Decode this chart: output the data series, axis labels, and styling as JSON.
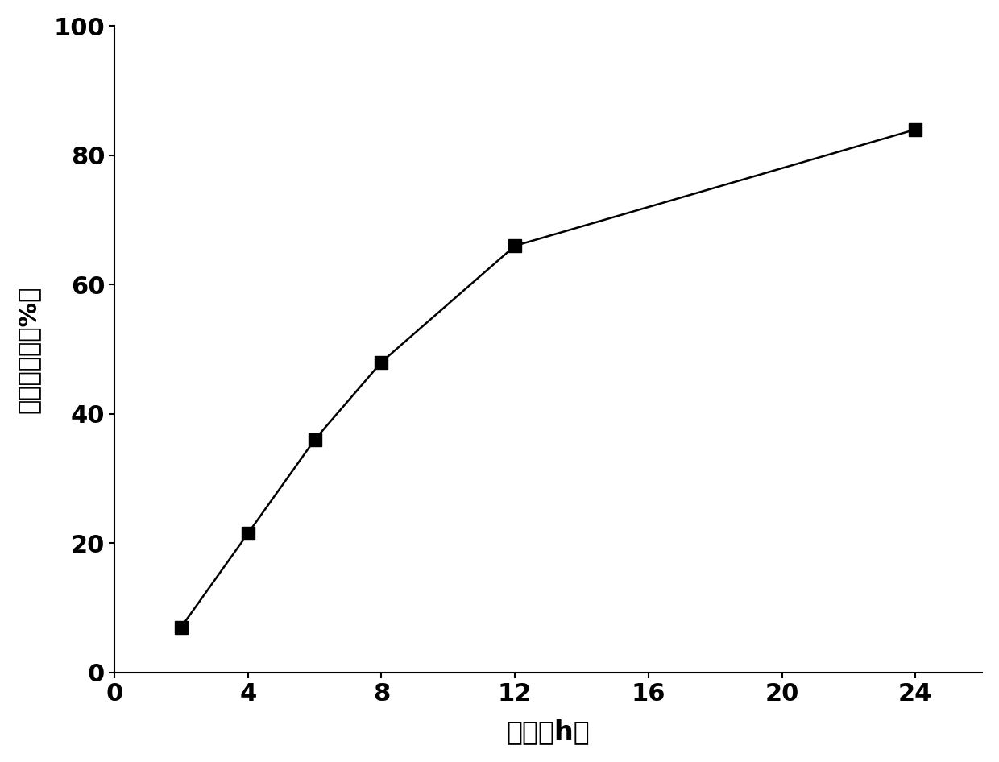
{
  "x": [
    2,
    4,
    6,
    8,
    12,
    24
  ],
  "y": [
    7,
    21.5,
    36,
    48,
    66,
    84
  ],
  "xlabel": "时间（h）",
  "ylabel": "累积释放度（%）",
  "xlim": [
    0,
    26
  ],
  "ylim": [
    0,
    100
  ],
  "xticks": [
    0,
    4,
    8,
    12,
    16,
    20,
    24
  ],
  "yticks": [
    0,
    20,
    40,
    60,
    80,
    100
  ],
  "line_color": "#000000",
  "marker": "s",
  "marker_color": "#000000",
  "marker_size": 11,
  "line_width": 1.8,
  "background_color": "#ffffff",
  "xlabel_fontsize": 24,
  "ylabel_fontsize": 22,
  "tick_fontsize": 22,
  "tick_fontweight": "bold"
}
